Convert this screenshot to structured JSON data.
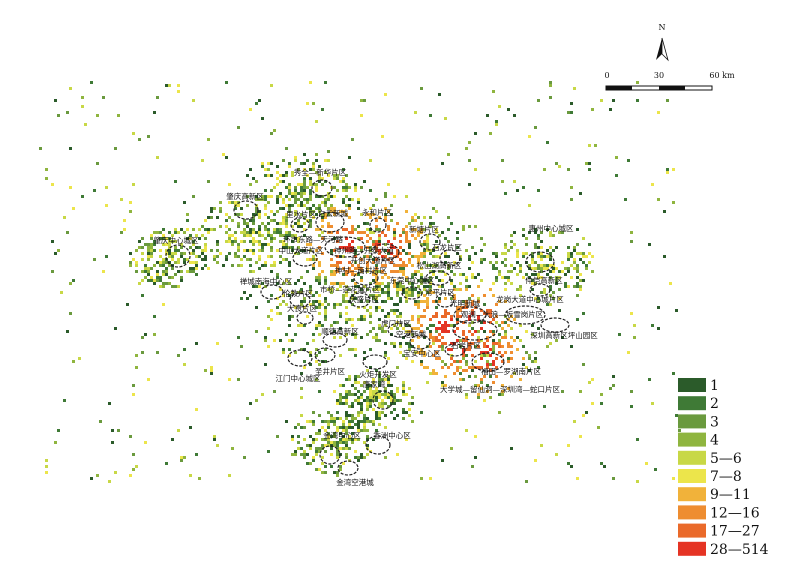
{
  "north": "N",
  "scale": {
    "ticks": [
      "0",
      "30",
      "60 km"
    ]
  },
  "places": [
    "秀全—新华片区",
    "肇庆高新区",
    "白云新城",
    "里水片区",
    "永和片区",
    "新塘片区",
    "惠州中心城区",
    "肇庆中心城区",
    "环市东路—天河路",
    "中山大道片区",
    "神州路—开泰大道",
    "石龙片区",
    "开创大道片区",
    "禅城南海中心区",
    "松山湖高新区",
    "神村—南村片区",
    "仲恺高新区",
    "伦教片区",
    "东莞中心城区",
    "市桥—莲花城片区",
    "常平片区",
    "光明新城",
    "龙岗大道中心城片区",
    "大良片区",
    "庆盛片区",
    "观澜—大浪—坂雪岗片区",
    "顺德高新区",
    "虎门片区",
    "深圳高新区坪山园区",
    "空港新城",
    "石岩片区",
    "宝安中心区",
    "江门中心城区",
    "圣井片区",
    "火炬开发区",
    "福田—罗湖南片区",
    "唐家湾",
    "大学城—留仙洞—深圳湾—蛇口片区",
    "金湾中心区",
    "香洲中心区",
    "金湾空港城"
  ],
  "legend": [
    {
      "label": "1",
      "color": "#2b5b2a"
    },
    {
      "label": "2",
      "color": "#3f7a36"
    },
    {
      "label": "3",
      "color": "#6a9a3e"
    },
    {
      "label": "4",
      "color": "#8fb53f"
    },
    {
      "label": "5—6",
      "color": "#c8d846"
    },
    {
      "label": "7—8",
      "color": "#ece54b"
    },
    {
      "label": "9—11",
      "color": "#f1b23a"
    },
    {
      "label": "12—16",
      "color": "#ee8d31"
    },
    {
      "label": "17—27",
      "color": "#ea6a2a"
    },
    {
      "label": "28—514",
      "color": "#e53424"
    }
  ]
}
